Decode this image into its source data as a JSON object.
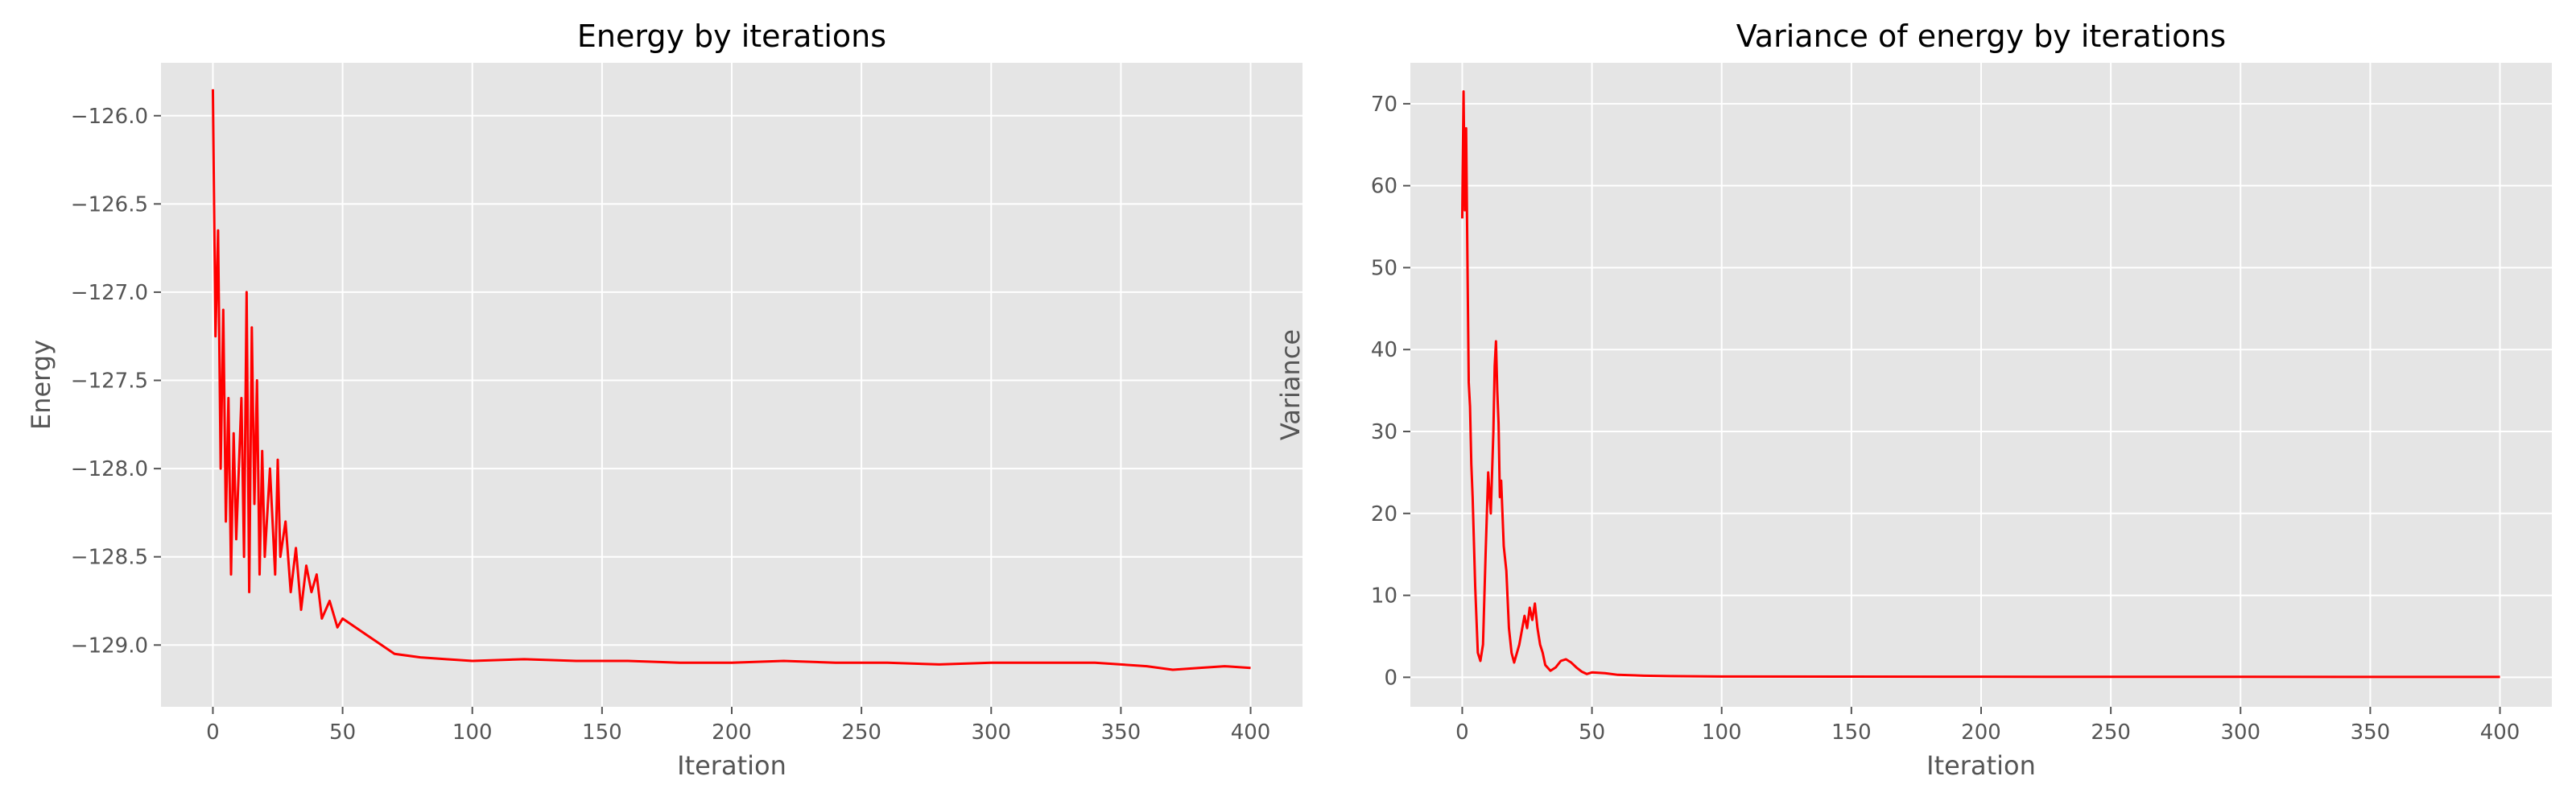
{
  "chart_data": [
    {
      "type": "line",
      "title": "Energy by iterations",
      "xlabel": "Iteration",
      "ylabel": "Energy",
      "xlim": [
        -20,
        420
      ],
      "ylim": [
        -129.35,
        -125.7
      ],
      "xticks": [
        0,
        50,
        100,
        150,
        200,
        250,
        300,
        350,
        400
      ],
      "yticks": [
        -129.0,
        -128.5,
        -128.0,
        -127.5,
        -127.0,
        -126.5,
        -126.0
      ],
      "ytick_labels": [
        "−129.0",
        "−128.5",
        "−128.0",
        "−127.5",
        "−127.0",
        "−126.5",
        "−126.0"
      ],
      "grid": true,
      "series": [
        {
          "name": "Energy",
          "color": "#ff0000",
          "x": [
            0,
            1,
            2,
            3,
            4,
            5,
            6,
            7,
            8,
            9,
            10,
            11,
            12,
            13,
            14,
            15,
            16,
            17,
            18,
            19,
            20,
            22,
            24,
            25,
            26,
            28,
            30,
            32,
            34,
            36,
            38,
            40,
            42,
            45,
            48,
            50,
            55,
            60,
            65,
            70,
            80,
            90,
            100,
            120,
            140,
            160,
            180,
            200,
            220,
            240,
            260,
            280,
            300,
            320,
            340,
            360,
            370,
            380,
            390,
            400
          ],
          "y": [
            -125.85,
            -127.25,
            -126.65,
            -128.0,
            -127.1,
            -128.3,
            -127.6,
            -128.6,
            -127.8,
            -128.4,
            -128.0,
            -127.6,
            -128.5,
            -127.0,
            -128.7,
            -127.2,
            -128.2,
            -127.5,
            -128.6,
            -127.9,
            -128.5,
            -128.0,
            -128.6,
            -127.95,
            -128.5,
            -128.3,
            -128.7,
            -128.45,
            -128.8,
            -128.55,
            -128.7,
            -128.6,
            -128.85,
            -128.75,
            -128.9,
            -128.85,
            -128.9,
            -128.95,
            -129.0,
            -129.05,
            -129.07,
            -129.08,
            -129.09,
            -129.08,
            -129.09,
            -129.09,
            -129.1,
            -129.1,
            -129.09,
            -129.1,
            -129.1,
            -129.11,
            -129.1,
            -129.1,
            -129.1,
            -129.12,
            -129.14,
            -129.13,
            -129.12,
            -129.13
          ]
        }
      ]
    },
    {
      "type": "line",
      "title": "Variance of energy by iterations",
      "xlabel": "Iteration",
      "ylabel": "Variance",
      "xlim": [
        -20,
        420
      ],
      "ylim": [
        -3.6,
        75.0
      ],
      "xticks": [
        0,
        50,
        100,
        150,
        200,
        250,
        300,
        350,
        400
      ],
      "yticks": [
        0,
        10,
        20,
        30,
        40,
        50,
        60,
        70
      ],
      "ytick_labels": [
        "0",
        "10",
        "20",
        "30",
        "40",
        "50",
        "60",
        "70"
      ],
      "grid": true,
      "series": [
        {
          "name": "Variance",
          "color": "#ff0000",
          "x": [
            0,
            0.5,
            1,
            1.5,
            2,
            2.5,
            3,
            3.5,
            4,
            5,
            6,
            7,
            8,
            9,
            10,
            11,
            12,
            12.5,
            13,
            13.5,
            14,
            14.5,
            15,
            16,
            17,
            18,
            19,
            20,
            22,
            24,
            25,
            26,
            27,
            28,
            29,
            30,
            31,
            32,
            34,
            36,
            38,
            40,
            42,
            44,
            46,
            48,
            50,
            55,
            60,
            70,
            80,
            100,
            150,
            200,
            250,
            300,
            350,
            400
          ],
          "y": [
            56,
            71.5,
            57,
            67,
            51,
            36,
            33,
            26,
            22,
            11,
            3,
            2,
            4,
            15,
            25,
            20,
            30,
            38,
            41,
            35,
            31,
            22,
            24,
            16,
            13,
            6,
            3,
            1.8,
            4,
            7.5,
            6,
            8.5,
            7,
            9,
            6,
            4,
            3,
            1.5,
            0.8,
            1.2,
            2.0,
            2.2,
            1.8,
            1.2,
            0.7,
            0.4,
            0.6,
            0.5,
            0.3,
            0.2,
            0.15,
            0.1,
            0.08,
            0.07,
            0.06,
            0.06,
            0.05,
            0.05
          ]
        }
      ]
    }
  ]
}
